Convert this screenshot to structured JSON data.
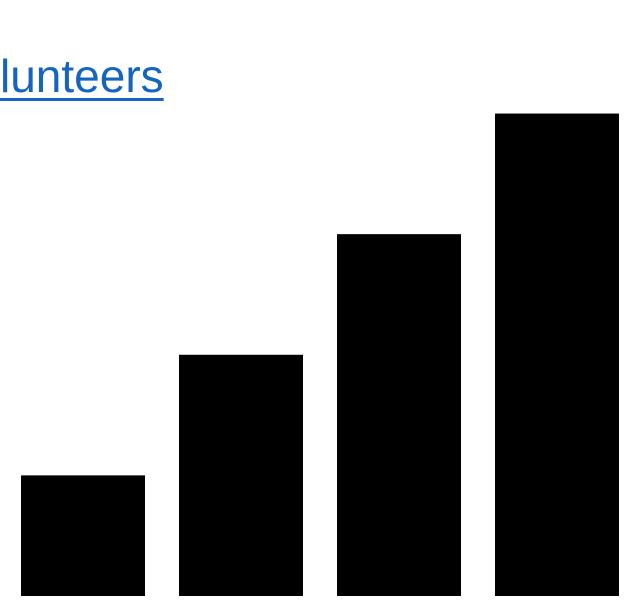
{
  "header": {
    "link_text": "lunteers",
    "link_color": "#1565c0"
  },
  "chart_data": {
    "type": "bar",
    "categories": [
      "",
      "",
      "",
      ""
    ],
    "values": [
      1,
      2,
      3,
      4
    ],
    "title": "",
    "xlabel": "",
    "ylabel": "",
    "ylim": [
      0,
      4.9
    ],
    "grid": false,
    "bar_color": "#000000"
  }
}
